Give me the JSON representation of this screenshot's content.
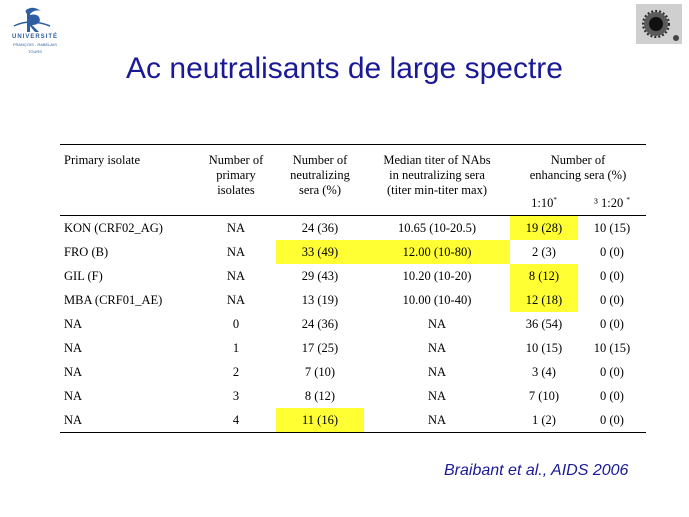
{
  "logo": {
    "line1": "UNIVERSITÉ",
    "line2": "FRANÇOIS - RABELAIS",
    "line3": "TOURS"
  },
  "title": "Ac neutralisants de large spectre",
  "table": {
    "headers": {
      "primary_isolate": "Primary isolate",
      "number_isolates": [
        "Number of",
        "primary",
        "isolates"
      ],
      "neutralizing_sera": [
        "Number of",
        "neutralizing",
        "sera (%)"
      ],
      "median_titer": [
        "Median titer of NAbs",
        "in neutralizing sera",
        "(titer min-titer max)"
      ],
      "enhancing_sera": [
        "Number of",
        "enhancing sera (%)"
      ],
      "sub_1_10": "1:10",
      "sub_1_10_mark": "*",
      "sub_1_20_prefix": "³ 1:20",
      "sub_1_20_mark": "*"
    },
    "rows": [
      {
        "isolate": "KON (CRF02_AG)",
        "n": "NA",
        "neut": "24 (36)",
        "median": "10.65 (10-20.5)",
        "e10": "19 (28)",
        "e20": "10 (15)",
        "hl": [
          "e10"
        ]
      },
      {
        "isolate": "FRO (B)",
        "n": "NA",
        "neut": "33 (49)",
        "median": "12.00 (10-80)",
        "e10": "2 (3)",
        "e20": "0 (0)",
        "hl": [
          "neut",
          "median"
        ]
      },
      {
        "isolate": "GIL (F)",
        "n": "NA",
        "neut": "29 (43)",
        "median": "10.20 (10-20)",
        "e10": "8 (12)",
        "e20": "0 (0)",
        "hl": [
          "e10"
        ]
      },
      {
        "isolate": "MBA (CRF01_AE)",
        "n": "NA",
        "neut": "13 (19)",
        "median": "10.00 (10-40)",
        "e10": "12 (18)",
        "e20": "0 (0)",
        "hl": [
          "e10"
        ]
      },
      {
        "isolate": "NA",
        "n": "0",
        "neut": "24 (36)",
        "median": "NA",
        "e10": "36 (54)",
        "e20": "0 (0)",
        "hl": []
      },
      {
        "isolate": "NA",
        "n": "1",
        "neut": "17 (25)",
        "median": "NA",
        "e10": "10 (15)",
        "e20": "10 (15)",
        "hl": []
      },
      {
        "isolate": "NA",
        "n": "2",
        "neut": "7 (10)",
        "median": "NA",
        "e10": "3 (4)",
        "e20": "0 (0)",
        "hl": []
      },
      {
        "isolate": "NA",
        "n": "3",
        "neut": "8 (12)",
        "median": "NA",
        "e10": "7 (10)",
        "e20": "0 (0)",
        "hl": []
      },
      {
        "isolate": "NA",
        "n": "4",
        "neut": "11 (16)",
        "median": "NA",
        "e10": "1 (2)",
        "e20": "0 (0)",
        "hl": [
          "neut"
        ]
      }
    ]
  },
  "citation": "Braibant et al., AIDS 2006",
  "colors": {
    "title": "#1a1a96",
    "highlight": "#ffff33",
    "logo": "#2e5fa3"
  }
}
